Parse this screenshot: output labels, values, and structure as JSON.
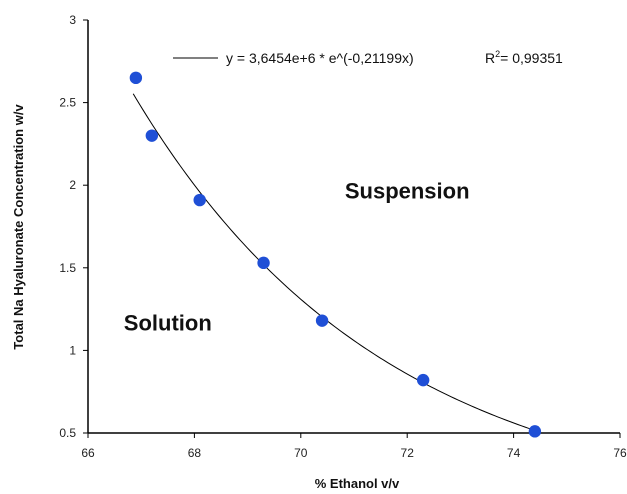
{
  "chart_data": {
    "type": "scatter",
    "xlabel": "% Ethanol v/v",
    "ylabel": "Total Na Hyaluronate  Concentration w/v",
    "xlim": [
      66,
      76
    ],
    "ylim": [
      0.5,
      3
    ],
    "xticks": [
      66,
      68,
      70,
      72,
      74,
      76
    ],
    "xtick_labels": [
      "66",
      "68",
      "70",
      "72",
      "74",
      "76"
    ],
    "yticks": [
      0.5,
      1,
      1.5,
      2,
      2.5,
      3
    ],
    "ytick_labels": [
      "0.5",
      "1",
      "1.5",
      "2",
      "2.5",
      "3"
    ],
    "grid": false,
    "legend": "top-right",
    "series": [
      {
        "type": "scatter",
        "color": "#1f4fd6",
        "x": [
          66.9,
          67.2,
          68.1,
          69.3,
          70.4,
          72.3,
          74.4
        ],
        "y": [
          2.65,
          2.3,
          1.91,
          1.53,
          1.18,
          0.82,
          0.51
        ]
      }
    ],
    "fit": {
      "color": "#000000",
      "a": 3645400,
      "b": -0.21199,
      "x_range": [
        66.85,
        74.4
      ],
      "label": "y = 3,6454e+6 * e^(-0,21199x)",
      "r2_prefix": "R",
      "r2_sup": "2",
      "r2_value": "= 0,99351"
    },
    "annotations": [
      {
        "text": "Suspension",
        "x": 72.0,
        "y": 1.92
      },
      {
        "text": "Solution",
        "x": 67.5,
        "y": 1.12
      }
    ]
  }
}
